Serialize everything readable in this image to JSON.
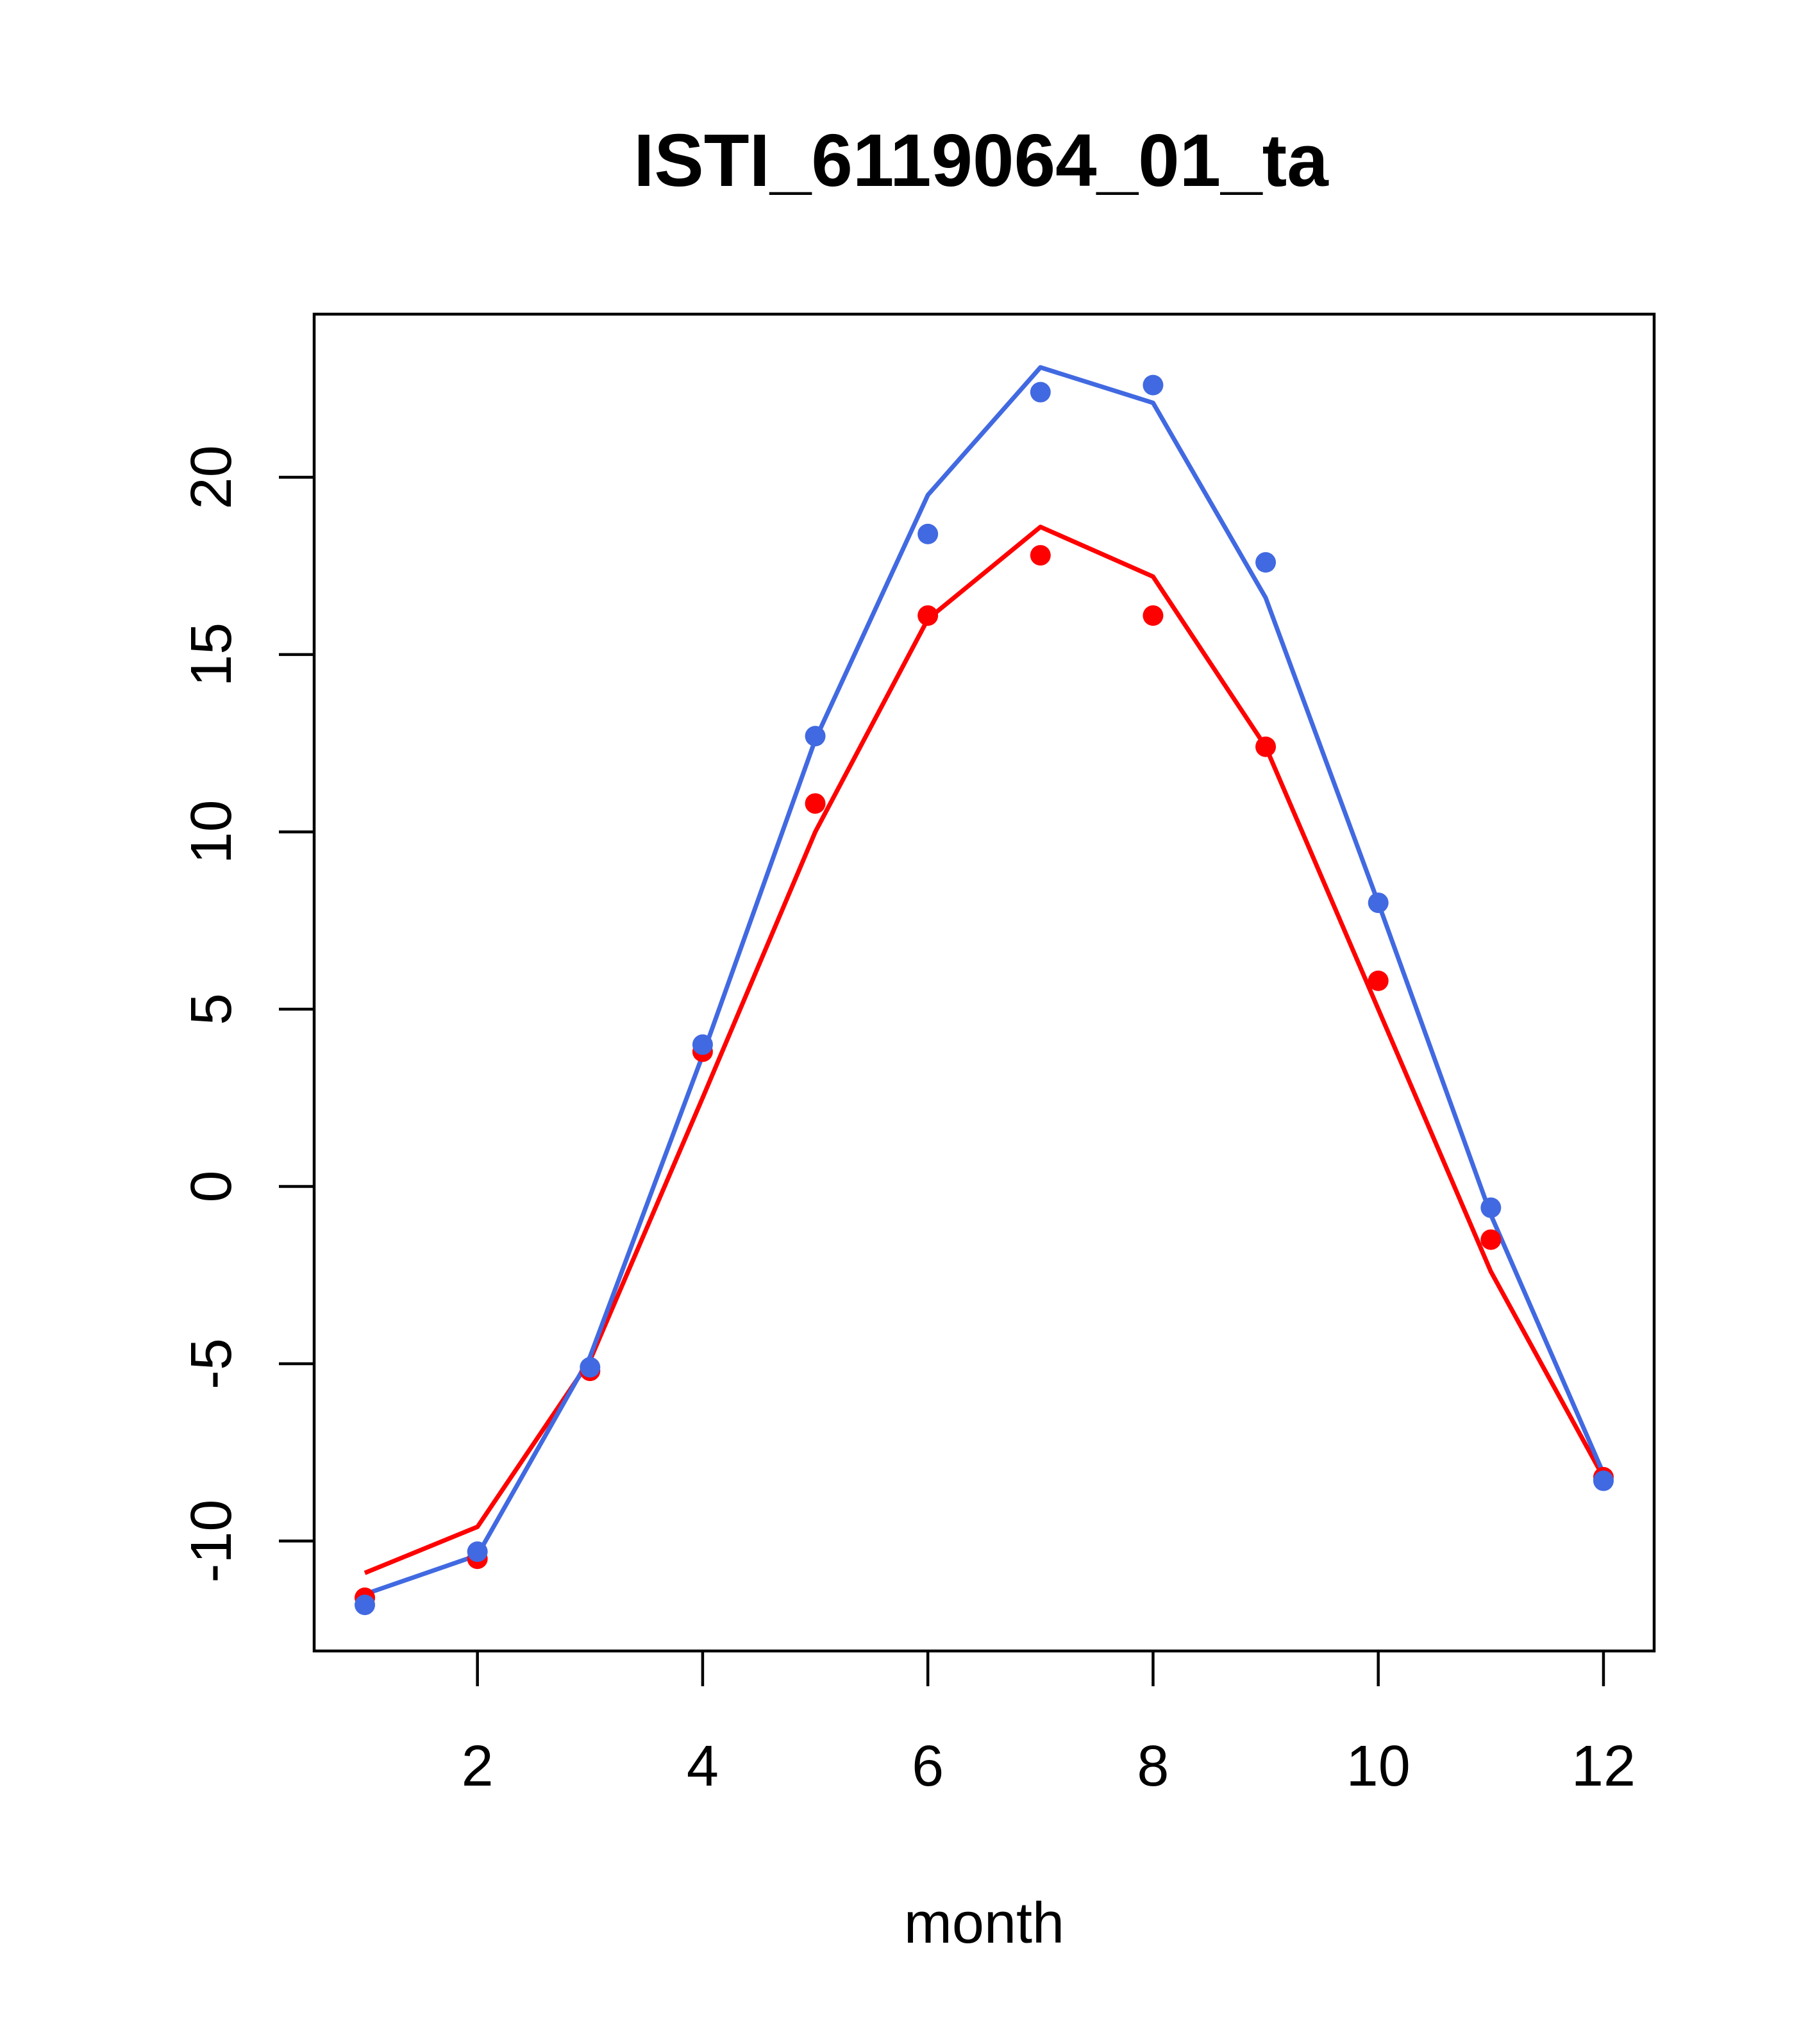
{
  "chart_data": {
    "type": "line",
    "title": "ISTI_6119064_01_ta",
    "xlabel": "month",
    "ylabel": "",
    "x": [
      1,
      2,
      3,
      4,
      5,
      6,
      7,
      8,
      9,
      10,
      11,
      12
    ],
    "xlim": [
      0.55,
      12.45
    ],
    "ylim": [
      -13.1,
      24.6
    ],
    "xticks": [
      2,
      4,
      6,
      8,
      10,
      12
    ],
    "yticks": [
      -10,
      -5,
      0,
      5,
      10,
      15,
      20
    ],
    "grid": false,
    "series": [
      {
        "color": "#ff0000",
        "points": [
          -11.6,
          -10.5,
          -5.2,
          3.8,
          10.8,
          16.1,
          17.8,
          16.1,
          12.4,
          5.8,
          -1.5,
          -8.2
        ],
        "line": [
          -10.9,
          -9.6,
          -4.9,
          2.5,
          10.0,
          16.0,
          18.6,
          17.2,
          12.4,
          5.0,
          -2.4,
          -8.2
        ]
      },
      {
        "color": "#4169e1",
        "points": [
          -11.8,
          -10.3,
          -5.1,
          4.0,
          12.7,
          18.4,
          22.4,
          22.6,
          17.6,
          8.0,
          -0.6,
          -8.3
        ],
        "line": [
          -11.5,
          -10.4,
          -4.8,
          3.7,
          12.6,
          19.5,
          23.1,
          22.1,
          16.6,
          8.0,
          -0.8,
          -8.1
        ]
      }
    ]
  }
}
